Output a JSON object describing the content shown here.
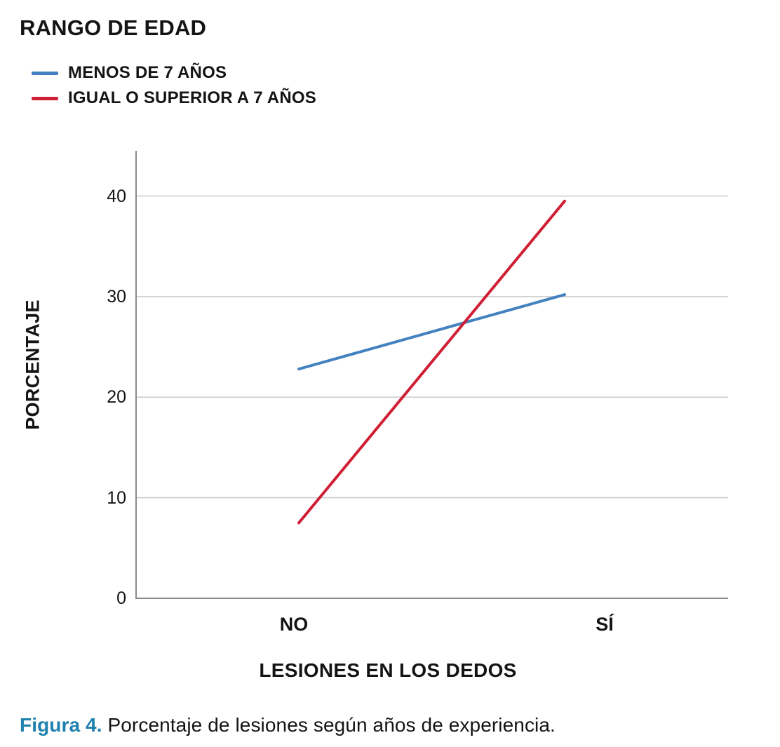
{
  "legend": {
    "title": "RANGO DE EDAD",
    "items": [
      {
        "label": "MENOS DE 7 AÑOS",
        "color": "#4381C0"
      },
      {
        "label": "IGUAL O SUPERIOR A 7 AÑOS",
        "color": "#D01F35"
      }
    ]
  },
  "chart_data": {
    "type": "line",
    "categories": [
      "NO",
      "SÍ"
    ],
    "series": [
      {
        "name": "MENOS DE 7 AÑOS",
        "color": "#4381C0",
        "values": [
          22.8,
          30.2
        ]
      },
      {
        "name": "IGUAL O SUPERIOR A 7 AÑOS",
        "color": "#D01F35",
        "values": [
          7.5,
          39.5
        ]
      }
    ],
    "title": "",
    "xlabel": "LESIONES EN LOS DEDOS",
    "ylabel": "PORCENTAJE",
    "yticks": [
      0,
      10,
      20,
      30,
      40
    ],
    "ylim": [
      0,
      44.5
    ],
    "grid": "horizontal",
    "legend_position": "top-left",
    "colors": {
      "axis": "#8A8A8A",
      "gridline": "#C9C9C9",
      "text": "#141414"
    }
  },
  "caption": {
    "prefix": "Figura 4.",
    "text": "Porcentaje de lesiones según años de experiencia.",
    "prefix_color": "#1F81AE"
  }
}
